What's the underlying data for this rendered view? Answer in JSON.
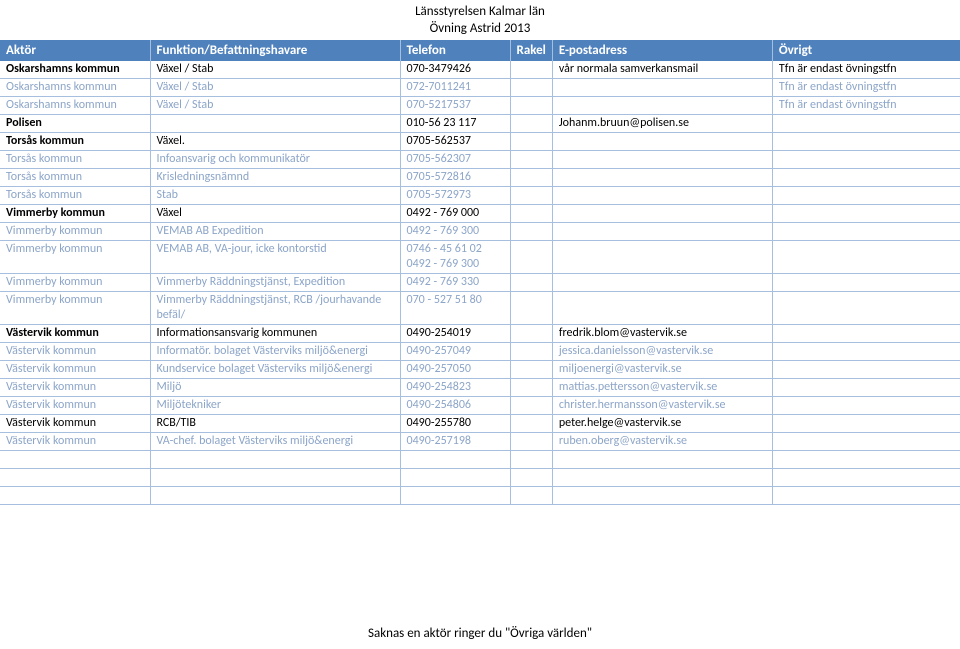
{
  "header": {
    "line1": "Länsstyrelsen Kalmar län",
    "line2": "Övning Astrid 2013"
  },
  "columns": {
    "aktor": "Aktör",
    "funktion": "Funktion/Befattningshavare",
    "telefon": "Telefon",
    "rakel": "Rakel",
    "epost": "E-postadress",
    "ovrigt": "Övrigt"
  },
  "rows": [
    {
      "style": "bold-row",
      "aktor": "Oskarshamns kommun",
      "funktion": "Växel / Stab",
      "telefon": "070-3479426",
      "rakel": "",
      "epost": "vår normala samverkansmail",
      "ovrigt": "Tfn är endast övningstfn"
    },
    {
      "style": "light-row",
      "aktor": "Oskarshamns kommun",
      "funktion": "Växel / Stab",
      "telefon": "072-7011241",
      "rakel": "",
      "epost": "",
      "ovrigt": "Tfn är endast övningstfn"
    },
    {
      "style": "light-row",
      "aktor": "Oskarshamns kommun",
      "funktion": "Växel / Stab",
      "telefon": "070-5217537",
      "rakel": "",
      "epost": "",
      "ovrigt": "Tfn är endast övningstfn"
    },
    {
      "style": "bold-row",
      "aktor": "Polisen",
      "funktion": "",
      "telefon": "010-56 23 117",
      "rakel": "",
      "epost": "Johanm.bruun@polisen.se",
      "ovrigt": ""
    },
    {
      "style": "bold-row",
      "aktor": "Torsås kommun",
      "funktion": "Växel.",
      "telefon": "0705-562537",
      "rakel": "",
      "epost": "",
      "ovrigt": ""
    },
    {
      "style": "light-row",
      "aktor": "Torsås kommun",
      "funktion": "Infoansvarig och kommunikatör",
      "telefon": "0705-562307",
      "rakel": "",
      "epost": "",
      "ovrigt": ""
    },
    {
      "style": "light-row",
      "aktor": "Torsås kommun",
      "funktion": "Krisledningsnämnd",
      "telefon": "0705-572816",
      "rakel": "",
      "epost": "",
      "ovrigt": ""
    },
    {
      "style": "light-row",
      "aktor": "Torsås kommun",
      "funktion": "Stab",
      "telefon": "0705-572973",
      "rakel": "",
      "epost": "",
      "ovrigt": ""
    },
    {
      "style": "bold-row",
      "aktor": "Vimmerby kommun",
      "funktion": "Växel",
      "telefon": "0492 - 769 000",
      "rakel": "",
      "epost": "",
      "ovrigt": ""
    },
    {
      "style": "light-row",
      "aktor": "Vimmerby kommun",
      "funktion": "VEMAB  AB Expedition",
      "telefon": "0492 - 769 300",
      "rakel": "",
      "epost": "",
      "ovrigt": ""
    },
    {
      "style": "light-row",
      "aktor": "Vimmerby kommun",
      "funktion": "VEMAB AB, VA-jour, icke kontorstid",
      "telefon": "0746 - 45 61 02\n0492 - 769 300",
      "rakel": "",
      "epost": "",
      "ovrigt": ""
    },
    {
      "style": "light-row",
      "aktor": "Vimmerby kommun",
      "funktion": "Vimmerby Räddningstjänst, Expedition",
      "telefon": "0492 - 769 330",
      "rakel": "",
      "epost": "",
      "ovrigt": ""
    },
    {
      "style": "light-row",
      "aktor": "Vimmerby kommun",
      "funktion": "Vimmerby Räddningstjänst, RCB /jourhavande befäl/",
      "telefon": "070 - 527 51 80",
      "rakel": "",
      "epost": "",
      "ovrigt": ""
    },
    {
      "style": "bold-row",
      "aktor": "Västervik kommun",
      "funktion": "Informationsansvarig kommunen",
      "telefon": "0490-254019",
      "rakel": "",
      "epost": "fredrik.blom@vastervik.se",
      "ovrigt": ""
    },
    {
      "style": "light-row",
      "aktor": "Västervik kommun",
      "funktion": "Informatör. bolaget Västerviks miljö&energi",
      "telefon": "0490-257049",
      "rakel": "",
      "epost": "jessica.danielsson@vastervik.se",
      "ovrigt": ""
    },
    {
      "style": "light-row",
      "aktor": "Västervik kommun",
      "funktion": "Kundservice bolaget Västerviks miljö&energi",
      "telefon": "0490-257050",
      "rakel": "",
      "epost": "miljoenergi@vastervik.se",
      "ovrigt": ""
    },
    {
      "style": "light-row",
      "aktor": "Västervik kommun",
      "funktion": "Miljö",
      "telefon": "0490-254823",
      "rakel": "",
      "epost": "mattias.pettersson@vastervik.se",
      "ovrigt": ""
    },
    {
      "style": "light-row",
      "aktor": "Västervik kommun",
      "funktion": "Miljötekniker",
      "telefon": "0490-254806",
      "rakel": "",
      "epost": "christer.hermansson@vastervik.se",
      "ovrigt": ""
    },
    {
      "style": "mixed-dark",
      "aktor": "Västervik kommun",
      "funktion": "RCB/TIB",
      "telefon": "0490-255780",
      "rakel": "",
      "epost": "peter.helge@vastervik.se",
      "ovrigt": ""
    },
    {
      "style": "light-row",
      "aktor": "Västervik kommun",
      "funktion": "VA-chef. bolaget Västerviks miljö&energi",
      "telefon": "0490-257198",
      "rakel": "",
      "epost": "ruben.oberg@vastervik.se",
      "ovrigt": ""
    }
  ],
  "footer": "Saknas en aktör ringer du \"Övriga världen\""
}
